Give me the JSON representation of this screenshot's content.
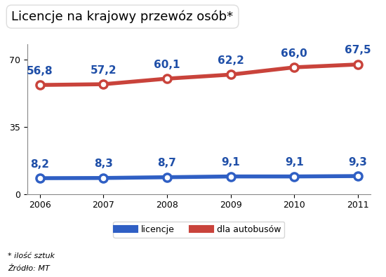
{
  "chart_data": {
    "type": "line",
    "title": "Licencje na krajowy przewóz osób*",
    "x": [
      2006,
      2007,
      2008,
      2009,
      2010,
      2011
    ],
    "xlim": [
      2005.8,
      2011.2
    ],
    "xticks": [
      2006,
      2007,
      2008,
      2009,
      2010,
      2011
    ],
    "ylim": [
      0,
      78
    ],
    "yticks": [
      0,
      35,
      70
    ],
    "grid": false,
    "legend": "lower center",
    "data_labels": true,
    "marker": "o",
    "line_style": "solid",
    "series": [
      {
        "name": "licencje",
        "color": "#2f5fc4",
        "values": [
          8.2,
          8.3,
          8.7,
          9.1,
          9.1,
          9.3
        ],
        "value_labels": [
          "8,2",
          "8,3",
          "8,7",
          "9,1",
          "9,1",
          "9,3"
        ]
      },
      {
        "name": "dla autobusów",
        "color": "#c9433b",
        "values": [
          56.8,
          57.2,
          60.1,
          62.2,
          66.0,
          67.5
        ],
        "value_labels": [
          "56,8",
          "57,2",
          "60,1",
          "62,2",
          "66,0",
          "67,5"
        ]
      }
    ],
    "annotations": [
      "* ilość sztuk",
      "Źródło: MT"
    ]
  }
}
